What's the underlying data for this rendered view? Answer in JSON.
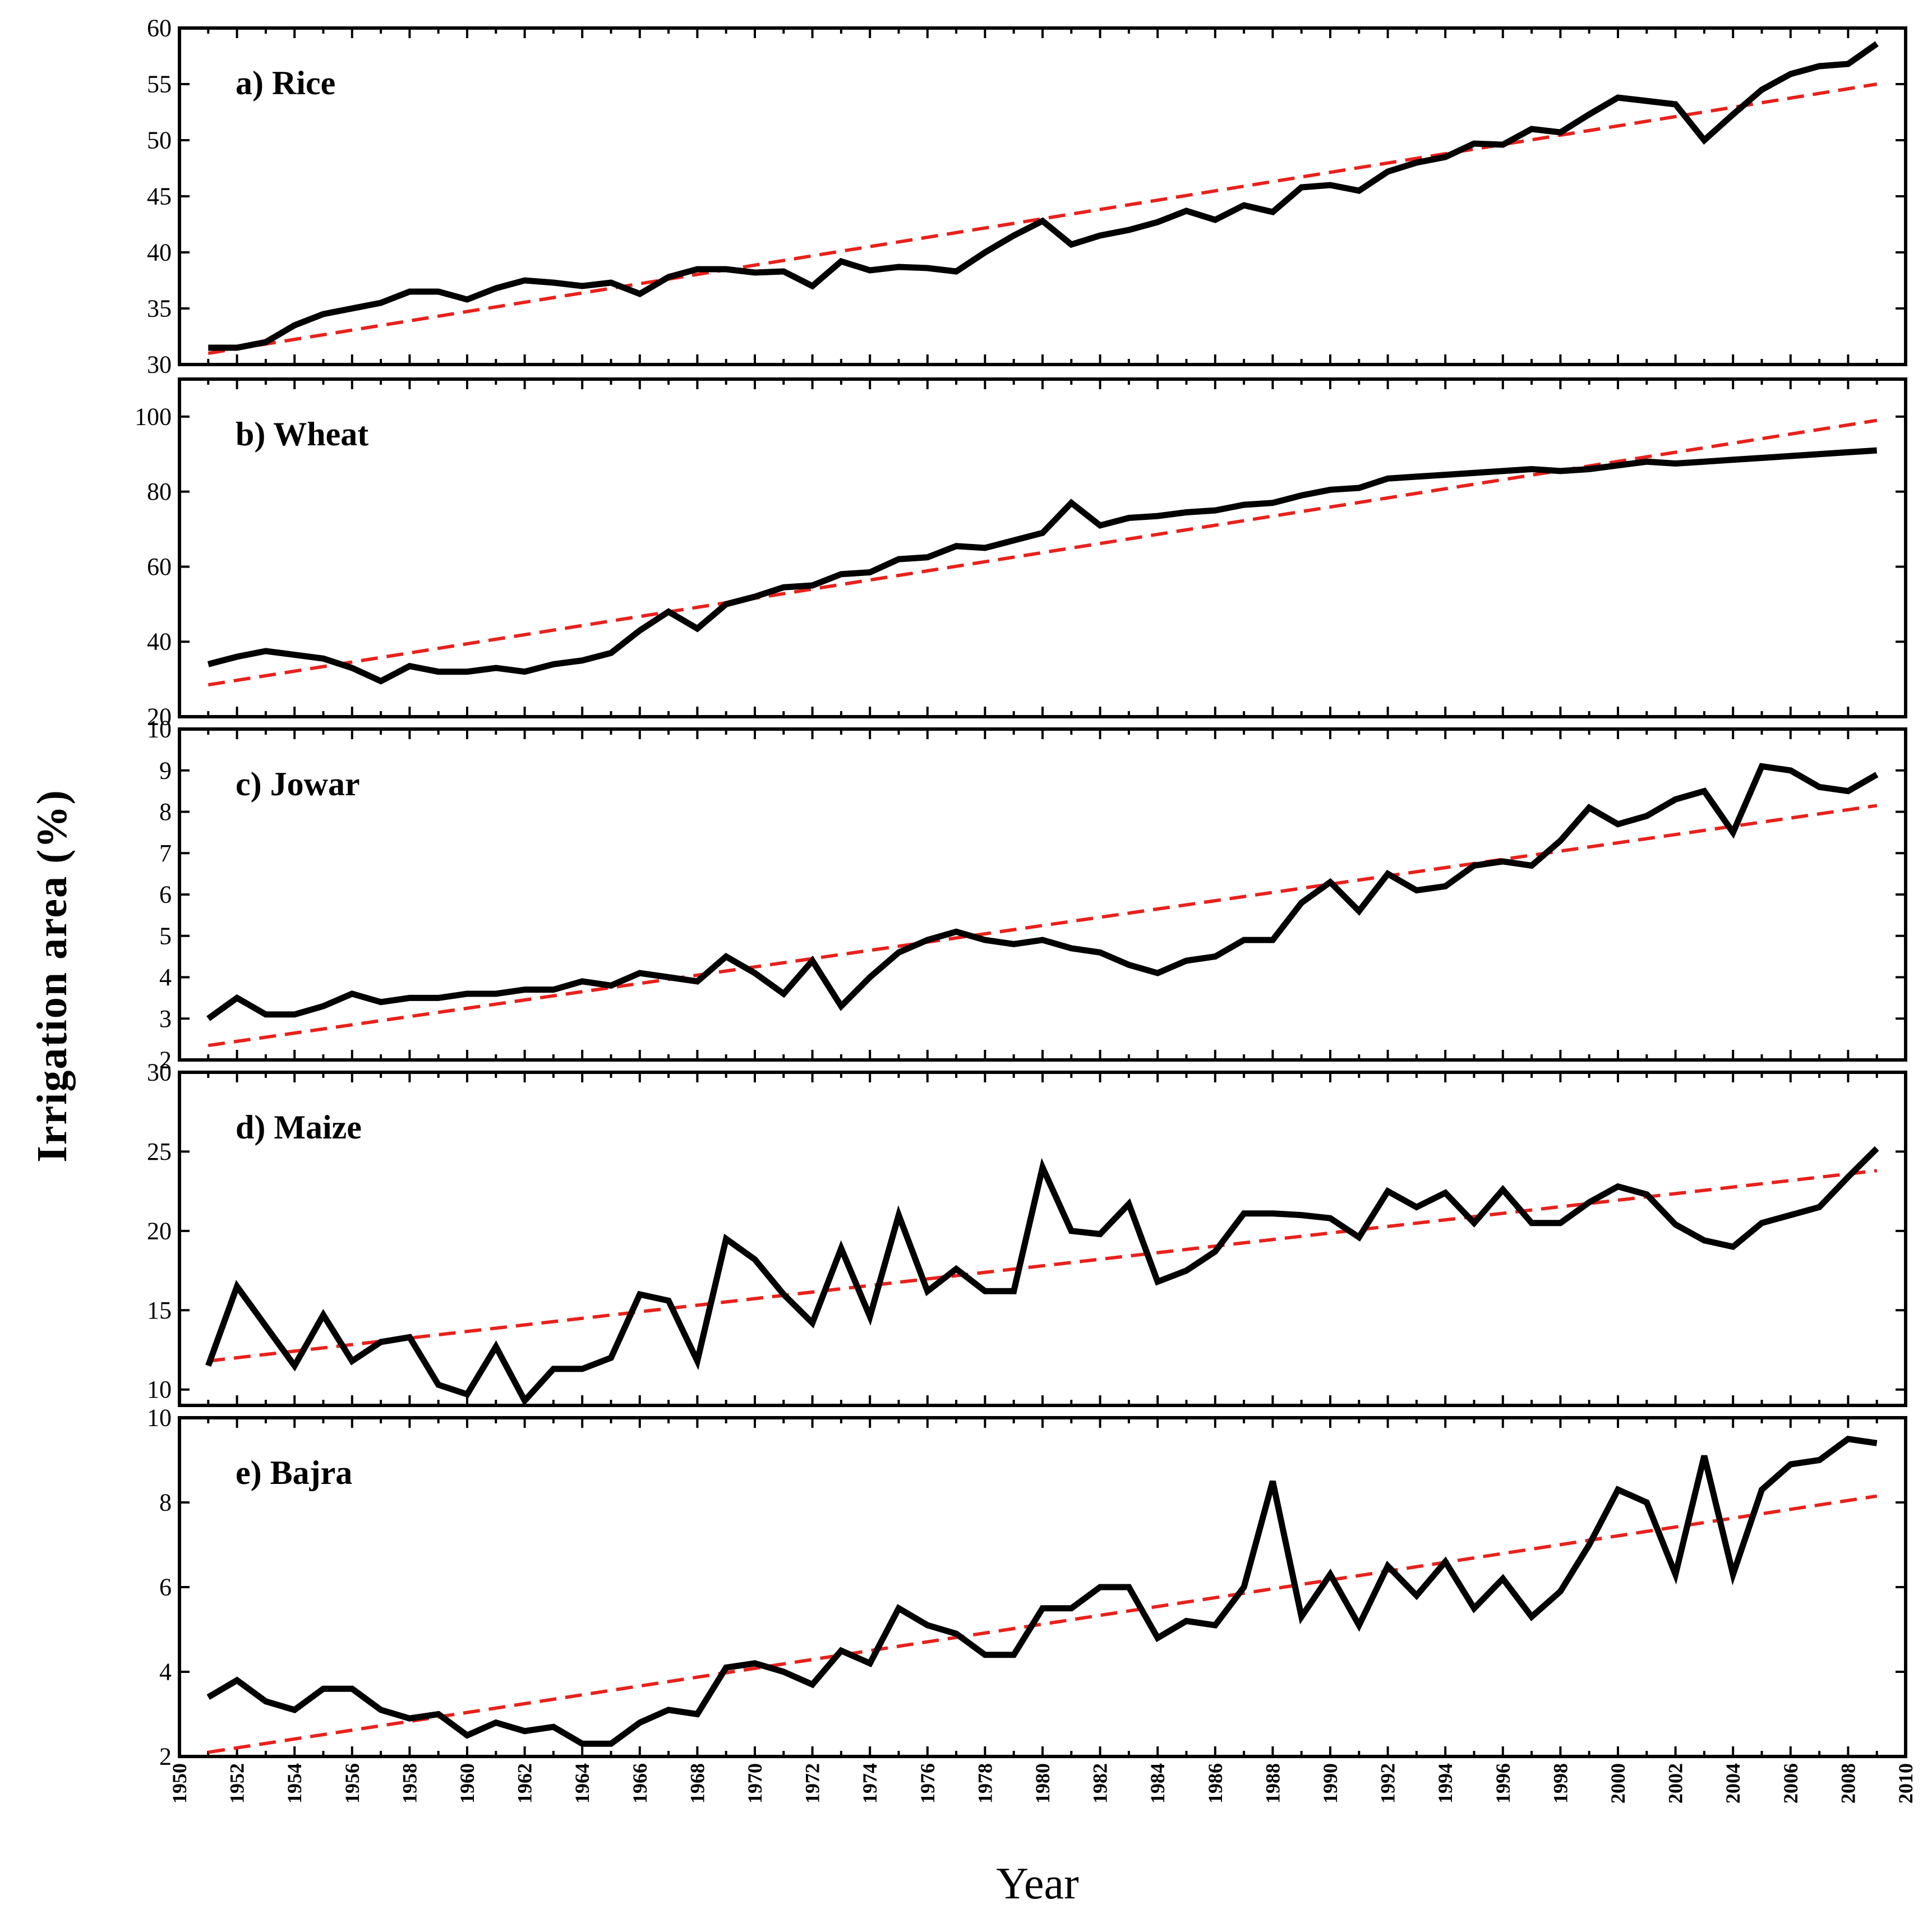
{
  "chart_data": {
    "type": "line",
    "ylabel": "Irrigation area (%)",
    "xlabel": "Year",
    "x_range": [
      1950,
      2010
    ],
    "x_tick_labels": [
      "1950",
      "1952",
      "1954",
      "1956",
      "1958",
      "1960",
      "1962",
      "1964",
      "1966",
      "1968",
      "1970",
      "1972",
      "1974",
      "1976",
      "1978",
      "1980",
      "1982",
      "1984",
      "1986",
      "1988",
      "1990",
      "1992",
      "1994",
      "1996",
      "1998",
      "2000",
      "2002",
      "2004",
      "2006",
      "2008",
      "2010"
    ],
    "years": [
      1951,
      1952,
      1953,
      1954,
      1955,
      1956,
      1957,
      1958,
      1959,
      1960,
      1961,
      1962,
      1963,
      1964,
      1965,
      1966,
      1967,
      1968,
      1969,
      1970,
      1971,
      1972,
      1973,
      1974,
      1975,
      1976,
      1977,
      1978,
      1979,
      1980,
      1981,
      1982,
      1983,
      1984,
      1985,
      1986,
      1987,
      1988,
      1989,
      1990,
      1991,
      1992,
      1993,
      1994,
      1995,
      1996,
      1997,
      1998,
      1999,
      2000,
      2001,
      2002,
      2003,
      2004,
      2005,
      2006,
      2007,
      2008,
      2009
    ],
    "colors": {
      "series": "#000000",
      "trend": "#e8211c"
    },
    "panels": [
      {
        "label": "a) Rice",
        "ylim": [
          30,
          60
        ],
        "y_ticks": [
          "30",
          "35",
          "40",
          "45",
          "50",
          "55",
          "60"
        ],
        "values": [
          31.5,
          31.5,
          32,
          33.5,
          34.5,
          35,
          35.5,
          36.5,
          36.5,
          35.8,
          36.8,
          37.5,
          37.3,
          37,
          37.3,
          36.3,
          37.8,
          38.5,
          38.5,
          38.2,
          38.3,
          37,
          39.2,
          38.4,
          38.7,
          38.6,
          38.3,
          40,
          41.5,
          42.8,
          40.7,
          41.5,
          42,
          42.7,
          43.7,
          42.9,
          44.2,
          43.6,
          45.8,
          46,
          45.5,
          47.2,
          48,
          48.5,
          49.7,
          49.6,
          51,
          50.7,
          52.3,
          53.8,
          53.5,
          53.2,
          50,
          52.3,
          54.5,
          55.9,
          56.6,
          56.8,
          58.6
        ],
        "trend": [
          31,
          55
        ]
      },
      {
        "label": "b) Wheat",
        "ylim": [
          20,
          110
        ],
        "y_ticks": [
          "20",
          "40",
          "60",
          "80",
          "100"
        ],
        "values": [
          34,
          36,
          37.5,
          36.5,
          35.5,
          33,
          29.5,
          33.5,
          32,
          32,
          33,
          32,
          34,
          35,
          37,
          43,
          48,
          43.5,
          50,
          52,
          54.5,
          55,
          58,
          58.5,
          62,
          62.5,
          65.5,
          65,
          67,
          69,
          77,
          71,
          73,
          73.5,
          74.5,
          75,
          76.5,
          77,
          79,
          80.5,
          81,
          83.5,
          84,
          84.5,
          85,
          85.5,
          86,
          85.5,
          86,
          87,
          88,
          87.5,
          88,
          88.5,
          89,
          89.5,
          90,
          90.5,
          91
        ],
        "trend": [
          28.5,
          99
        ]
      },
      {
        "label": "c) Jowar",
        "ylim": [
          2,
          10
        ],
        "y_ticks": [
          "2",
          "3",
          "4",
          "5",
          "6",
          "7",
          "8",
          "9",
          "10"
        ],
        "values": [
          3,
          3.5,
          3.1,
          3.1,
          3.3,
          3.6,
          3.4,
          3.5,
          3.5,
          3.6,
          3.6,
          3.7,
          3.7,
          3.9,
          3.8,
          4.1,
          4,
          3.9,
          4.5,
          4.1,
          3.6,
          4.4,
          3.3,
          4,
          4.6,
          4.9,
          5.1,
          4.9,
          4.8,
          4.9,
          4.7,
          4.6,
          4.3,
          4.1,
          4.4,
          4.5,
          4.9,
          4.9,
          5.8,
          6.3,
          5.6,
          6.5,
          6.1,
          6.2,
          6.7,
          6.8,
          6.7,
          7.3,
          8.1,
          7.7,
          7.9,
          8.3,
          8.5,
          7.5,
          9.1,
          9,
          8.6,
          8.5,
          8.9
        ],
        "trend": [
          2.35,
          8.15
        ]
      },
      {
        "label": "d) Maize",
        "ylim": [
          9,
          30
        ],
        "y_ticks": [
          "10",
          "15",
          "20",
          "25",
          "30"
        ],
        "values": [
          11.5,
          16.5,
          14,
          11.5,
          14.7,
          11.8,
          13,
          13.3,
          10.3,
          9.7,
          12.7,
          9.3,
          11.3,
          11.3,
          12,
          16,
          15.6,
          11.8,
          19.5,
          18.2,
          16,
          14.2,
          18.9,
          14.6,
          21,
          16.2,
          17.6,
          16.2,
          16.2,
          24,
          20,
          19.8,
          21.7,
          16.8,
          17.5,
          18.7,
          21.1,
          21.1,
          21,
          20.8,
          19.6,
          22.5,
          21.5,
          22.4,
          20.5,
          22.6,
          20.5,
          20.5,
          21.8,
          22.8,
          22.3,
          20.4,
          19.4,
          19,
          20.5,
          21,
          21.5,
          23.4,
          25.2
        ],
        "trend": [
          11.8,
          23.8
        ]
      },
      {
        "label": "e) Bajra",
        "ylim": [
          2,
          10
        ],
        "y_ticks": [
          "2",
          "4",
          "6",
          "8",
          "10"
        ],
        "values": [
          3.4,
          3.8,
          3.3,
          3.1,
          3.6,
          3.6,
          3.1,
          2.9,
          3,
          2.5,
          2.8,
          2.6,
          2.7,
          2.3,
          2.3,
          2.8,
          3.1,
          3,
          4.1,
          4.2,
          4,
          3.7,
          4.5,
          4.2,
          5.5,
          5.1,
          4.9,
          4.4,
          4.4,
          5.5,
          5.5,
          6,
          6,
          4.8,
          5.2,
          5.1,
          6,
          8.5,
          5.3,
          6.3,
          5.1,
          6.5,
          5.8,
          6.6,
          5.5,
          6.2,
          5.3,
          5.9,
          7,
          8.3,
          8,
          6.3,
          9.1,
          6.3,
          8.3,
          8.9,
          9,
          9.5,
          9.4
        ],
        "trend": [
          2.1,
          8.15
        ]
      }
    ]
  }
}
